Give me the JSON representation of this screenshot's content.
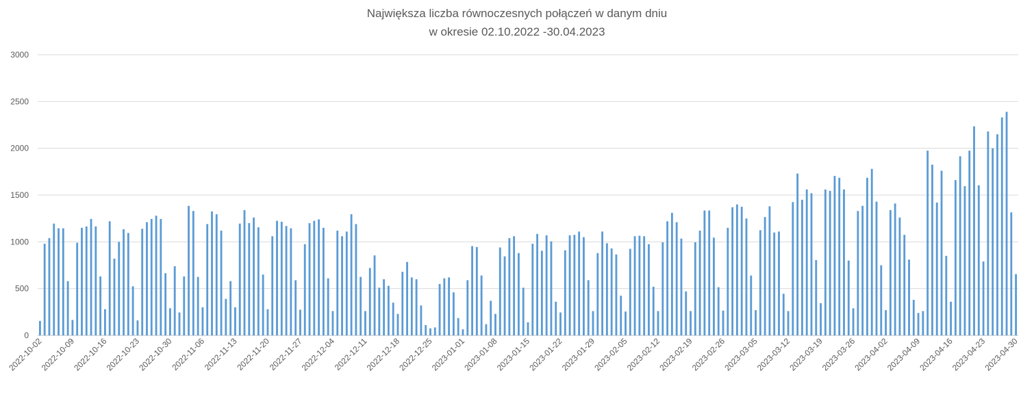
{
  "chart_data": {
    "type": "bar",
    "title": "Największa liczba równoczesnych połączeń w danym dniu",
    "subtitle": "w okresie 02.10.2022 -30.04.2023",
    "xlabel": "",
    "ylabel": "",
    "ylim": [
      0,
      3000
    ],
    "yticks": [
      "0",
      "500",
      "1000",
      "1500",
      "2000",
      "2500",
      "3000"
    ],
    "grid": true,
    "legend": "none",
    "color": "#5b9bd5",
    "x_tick_labels": [
      "2022-10-02",
      "2022-10-09",
      "2022-10-16",
      "2022-10-23",
      "2022-10-30",
      "2022-11-06",
      "2022-11-13",
      "2022-11-20",
      "2022-11-27",
      "2022-12-04",
      "2022-12-11",
      "2022-12-18",
      "2022-12-25",
      "2023-01-01",
      "2023-01-08",
      "2023-01-15",
      "2023-01-22",
      "2023-01-29",
      "2023-02-05",
      "2023-02-12",
      "2023-02-19",
      "2023-02-26",
      "2023-03-05",
      "2023-03-12",
      "2023-03-19",
      "2023-03-26",
      "2023-04-02",
      "2023-04-09",
      "2023-04-16",
      "2023-04-23",
      "2023-04-30"
    ],
    "start_date": "2022-10-02",
    "end_date": "2023-04-30",
    "values": [
      155,
      980,
      1040,
      1195,
      1145,
      1145,
      580,
      165,
      990,
      1150,
      1165,
      1245,
      1165,
      630,
      280,
      1220,
      820,
      1000,
      1135,
      1095,
      525,
      160,
      1140,
      1210,
      1245,
      1280,
      1245,
      665,
      290,
      740,
      245,
      630,
      1385,
      1330,
      625,
      300,
      1190,
      1325,
      1295,
      1120,
      390,
      580,
      300,
      1195,
      1340,
      1200,
      1260,
      1155,
      650,
      280,
      1060,
      1225,
      1215,
      1170,
      1145,
      590,
      275,
      975,
      1200,
      1225,
      1240,
      1150,
      610,
      260,
      1120,
      1060,
      1110,
      1295,
      1190,
      625,
      260,
      720,
      855,
      510,
      600,
      530,
      350,
      230,
      680,
      785,
      620,
      600,
      320,
      110,
      75,
      85,
      550,
      610,
      620,
      460,
      185,
      65,
      590,
      955,
      945,
      640,
      120,
      370,
      230,
      940,
      845,
      1040,
      1060,
      880,
      510,
      140,
      980,
      1085,
      905,
      1070,
      1005,
      360,
      245,
      910,
      1070,
      1075,
      1110,
      1050,
      590,
      260,
      880,
      1110,
      985,
      930,
      865,
      425,
      255,
      925,
      1060,
      1065,
      1060,
      975,
      520,
      260,
      995,
      1220,
      1310,
      1210,
      1035,
      470,
      260,
      995,
      1120,
      1335,
      1335,
      1045,
      515,
      265,
      1150,
      1370,
      1400,
      1375,
      1250,
      640,
      270,
      1125,
      1265,
      1380,
      1100,
      1110,
      445,
      260,
      1425,
      1730,
      1450,
      1560,
      1520,
      805,
      345,
      1560,
      1545,
      1705,
      1685,
      1560,
      800,
      290,
      1330,
      1385,
      1685,
      1780,
      1430,
      750,
      270,
      1340,
      1410,
      1260,
      1075,
      810,
      380,
      240,
      260,
      1975,
      1825,
      1420,
      1760,
      850,
      360,
      1660,
      1915,
      1595,
      1975,
      2235,
      1605,
      790,
      2180,
      2000,
      2150,
      2330,
      2390,
      1315,
      655
    ]
  }
}
